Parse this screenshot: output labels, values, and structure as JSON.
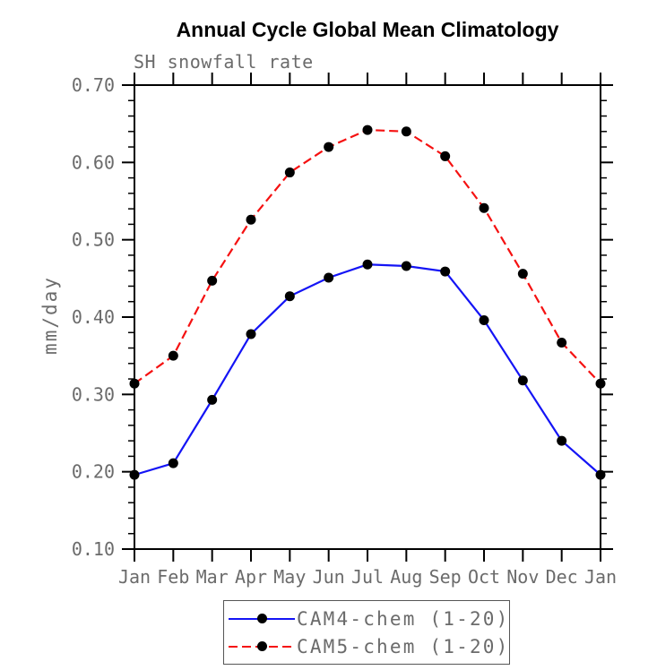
{
  "chart_data": {
    "type": "line",
    "title": "Annual Cycle Global Mean Climatology",
    "subtitle": "SH snowfall rate",
    "ylabel": "mm/day",
    "xlabel": "",
    "categories": [
      "Jan",
      "Feb",
      "Mar",
      "Apr",
      "May",
      "Jun",
      "Jul",
      "Aug",
      "Sep",
      "Oct",
      "Nov",
      "Dec",
      "Jan"
    ],
    "ylim": [
      0.1,
      0.7
    ],
    "ytick_step": 0.1,
    "yminor_step": 0.02,
    "ytick_labels": [
      "0.10",
      "0.20",
      "0.30",
      "0.40",
      "0.50",
      "0.60",
      "0.70"
    ],
    "grid": false,
    "legend_position": "bottom-center",
    "axis_color": "#000000",
    "label_color": "#6b6b6b",
    "marker_color": "#000000",
    "series": [
      {
        "name": "CAM4-chem (1-20)",
        "color": "#1414f5",
        "line_style": "solid",
        "marker": "filled-circle",
        "values": [
          0.196,
          0.211,
          0.293,
          0.378,
          0.427,
          0.451,
          0.468,
          0.466,
          0.459,
          0.396,
          0.318,
          0.24,
          0.196
        ]
      },
      {
        "name": "CAM5-chem (1-20)",
        "color": "#f51111",
        "line_style": "dashed",
        "marker": "filled-circle",
        "values": [
          0.314,
          0.35,
          0.447,
          0.526,
          0.587,
          0.62,
          0.642,
          0.64,
          0.608,
          0.541,
          0.456,
          0.367,
          0.314
        ]
      }
    ]
  }
}
